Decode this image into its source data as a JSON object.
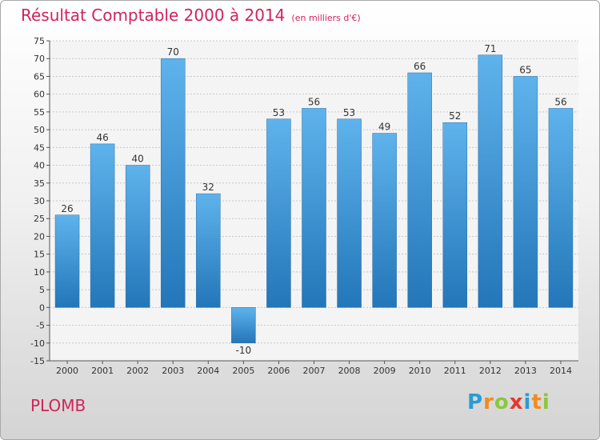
{
  "title": "Résultat Comptable 2000 à 2014",
  "subtitle": "(en milliers d'€)",
  "town": "PLOMB",
  "logo": {
    "letters": [
      "P",
      "r",
      "o",
      "x",
      "i",
      "t",
      "i"
    ],
    "colors": [
      "#2a9bd5",
      "#f08c1e",
      "#8cc63e",
      "#e8362a",
      "#2a9bd5",
      "#f08c1e",
      "#8cc63e"
    ]
  },
  "colors": {
    "bar": "#3d97dc",
    "title": "#d1235a",
    "grid": "#c8c8c8"
  },
  "chart_data": {
    "type": "bar",
    "title": "Résultat Comptable 2000 à 2014",
    "subtitle": "(en milliers d'€)",
    "categories": [
      "2000",
      "2001",
      "2002",
      "2003",
      "2004",
      "2005",
      "2006",
      "2007",
      "2008",
      "2009",
      "2010",
      "2011",
      "2012",
      "2013",
      "2014"
    ],
    "values": [
      26,
      46,
      40,
      70,
      32,
      -10,
      53,
      56,
      53,
      49,
      66,
      52,
      71,
      65,
      56
    ],
    "ylim": [
      -15,
      75
    ],
    "yticks": [
      -15,
      -10,
      -5,
      0,
      5,
      10,
      15,
      20,
      25,
      30,
      35,
      40,
      45,
      50,
      55,
      60,
      65,
      70,
      75
    ],
    "grid": true,
    "xlabel": "",
    "ylabel": ""
  }
}
